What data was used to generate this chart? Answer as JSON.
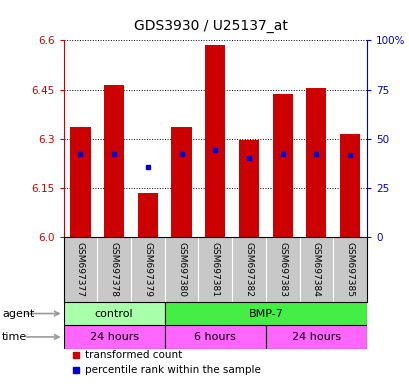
{
  "title": "GDS3930 / U25137_at",
  "samples": [
    "GSM697377",
    "GSM697378",
    "GSM697379",
    "GSM697380",
    "GSM697381",
    "GSM697382",
    "GSM697383",
    "GSM697384",
    "GSM697385"
  ],
  "bar_tops": [
    6.335,
    6.465,
    6.135,
    6.335,
    6.585,
    6.295,
    6.435,
    6.455,
    6.315
  ],
  "bar_bottom": 6.0,
  "blue_dot_y": [
    6.255,
    6.255,
    6.215,
    6.255,
    6.265,
    6.24,
    6.255,
    6.255,
    6.25
  ],
  "ylim": [
    6.0,
    6.6
  ],
  "yticks_left": [
    6.0,
    6.15,
    6.3,
    6.45,
    6.6
  ],
  "yticks_right": [
    0,
    25,
    50,
    75,
    100
  ],
  "ytick_labels_right": [
    "0",
    "25",
    "50",
    "75",
    "100%"
  ],
  "bar_color": "#cc0000",
  "dot_color": "#0000cc",
  "agent_groups": [
    {
      "label": "control",
      "start": 0,
      "end": 3,
      "color": "#aaffaa"
    },
    {
      "label": "BMP-7",
      "start": 3,
      "end": 9,
      "color": "#44ee44"
    }
  ],
  "time_color": "#ff66ff",
  "time_groups": [
    {
      "label": "24 hours",
      "start": 0,
      "end": 3
    },
    {
      "label": "6 hours",
      "start": 3,
      "end": 6
    },
    {
      "label": "24 hours",
      "start": 6,
      "end": 9
    }
  ],
  "legend_items": [
    {
      "color": "#cc0000",
      "label": "transformed count"
    },
    {
      "color": "#0000cc",
      "label": "percentile rank within the sample"
    }
  ],
  "ylabel_left_color": "#cc0000",
  "ylabel_right_color": "#0000cc",
  "background_color": "#ffffff",
  "plot_bg_color": "#ffffff",
  "grid_color": "#000000",
  "tick_area_color": "#c8c8c8",
  "arrow_color": "#999999"
}
